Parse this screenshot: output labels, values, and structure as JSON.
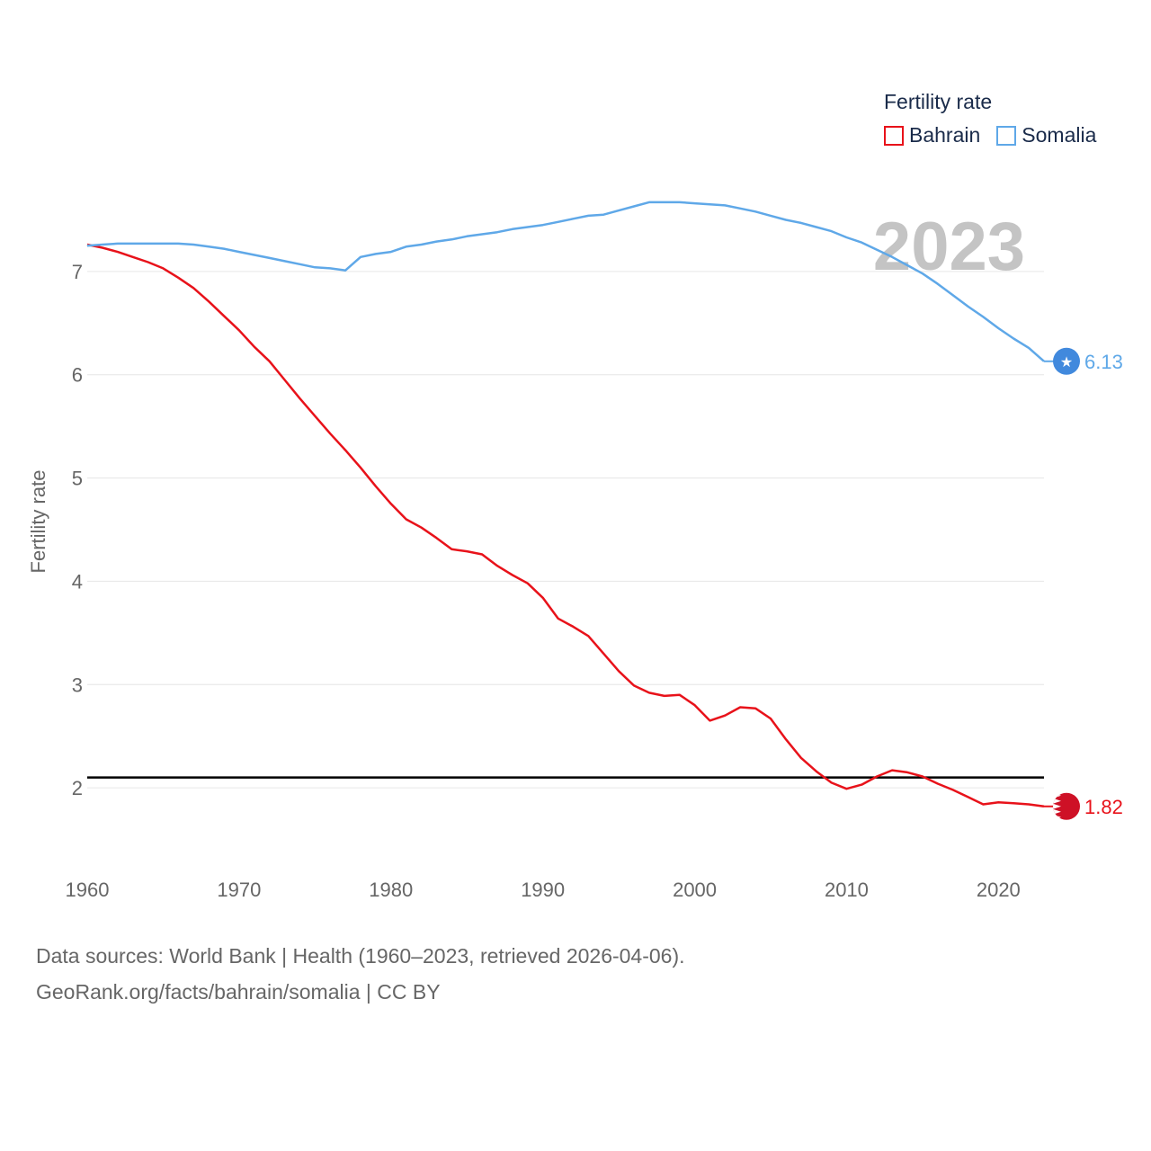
{
  "chart_data": {
    "type": "line",
    "title": "Fertility rate",
    "ylabel": "Fertility rate",
    "xlim": [
      1960,
      2023
    ],
    "ylim": [
      1.4,
      7.8
    ],
    "yticks": [
      2,
      3,
      4,
      5,
      6,
      7
    ],
    "xticks": [
      1960,
      1970,
      1980,
      1990,
      2000,
      2010,
      2020
    ],
    "reference_line": 2.1,
    "current_year": "2023",
    "x": [
      1960,
      1961,
      1962,
      1963,
      1964,
      1965,
      1966,
      1967,
      1968,
      1969,
      1970,
      1971,
      1972,
      1973,
      1974,
      1975,
      1976,
      1977,
      1978,
      1979,
      1980,
      1981,
      1982,
      1983,
      1984,
      1985,
      1986,
      1987,
      1988,
      1989,
      1990,
      1991,
      1992,
      1993,
      1994,
      1995,
      1996,
      1997,
      1998,
      1999,
      2000,
      2001,
      2002,
      2003,
      2004,
      2005,
      2006,
      2007,
      2008,
      2009,
      2010,
      2011,
      2012,
      2013,
      2014,
      2015,
      2016,
      2017,
      2018,
      2019,
      2020,
      2021,
      2022,
      2023
    ],
    "series": [
      {
        "name": "Bahrain",
        "color": "#e8121a",
        "end_label": "1.82",
        "values": [
          7.26,
          7.23,
          7.19,
          7.14,
          7.09,
          7.03,
          6.94,
          6.84,
          6.71,
          6.57,
          6.43,
          6.27,
          6.13,
          5.95,
          5.77,
          5.6,
          5.43,
          5.27,
          5.1,
          4.92,
          4.75,
          4.6,
          4.52,
          4.42,
          4.31,
          4.29,
          4.26,
          4.15,
          4.06,
          3.98,
          3.84,
          3.64,
          3.56,
          3.47,
          3.3,
          3.13,
          2.99,
          2.92,
          2.89,
          2.9,
          2.8,
          2.65,
          2.7,
          2.78,
          2.77,
          2.67,
          2.47,
          2.29,
          2.16,
          2.05,
          1.99,
          2.03,
          2.11,
          2.17,
          2.15,
          2.11,
          2.04,
          1.98,
          1.91,
          1.84,
          1.86,
          1.85,
          1.84,
          1.82
        ]
      },
      {
        "name": "Somalia",
        "color": "#5fa8e8",
        "end_label": "6.13",
        "values": [
          7.25,
          7.26,
          7.27,
          7.27,
          7.27,
          7.27,
          7.27,
          7.26,
          7.24,
          7.22,
          7.19,
          7.16,
          7.13,
          7.1,
          7.07,
          7.04,
          7.03,
          7.01,
          7.14,
          7.17,
          7.19,
          7.24,
          7.26,
          7.29,
          7.31,
          7.34,
          7.36,
          7.38,
          7.41,
          7.43,
          7.45,
          7.48,
          7.51,
          7.54,
          7.55,
          7.59,
          7.63,
          7.67,
          7.67,
          7.67,
          7.66,
          7.65,
          7.64,
          7.61,
          7.58,
          7.54,
          7.5,
          7.47,
          7.43,
          7.39,
          7.33,
          7.28,
          7.21,
          7.14,
          7.06,
          6.98,
          6.88,
          6.77,
          6.66,
          6.56,
          6.45,
          6.35,
          6.26,
          6.13
        ]
      }
    ]
  },
  "legend": {
    "title": "Fertility rate",
    "items": [
      {
        "label": "Bahrain",
        "color": "#e8121a"
      },
      {
        "label": "Somalia",
        "color": "#5fa8e8"
      }
    ]
  },
  "footer": {
    "line1": "Data sources: World Bank | Health (1960–2023, retrieved 2026-04-06).",
    "line2": "GeoRank.org/facts/bahrain/somalia | CC BY"
  }
}
